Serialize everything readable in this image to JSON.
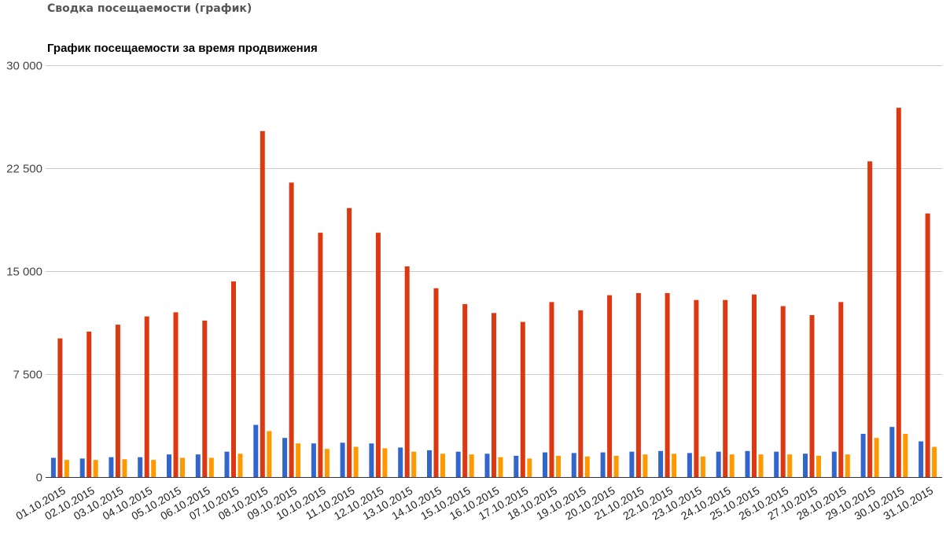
{
  "header": {
    "title": "Сводка посещаемости (график)"
  },
  "chart_data": {
    "type": "bar",
    "title": "График посещаемости за время продвижения",
    "xlabel": "",
    "ylabel": "",
    "ylim": [
      0,
      30000
    ],
    "y_ticks": [
      0,
      7500,
      15000,
      22500,
      30000
    ],
    "y_tick_labels": [
      "0",
      "7 500",
      "15 000",
      "22 500",
      "30 000"
    ],
    "grid": true,
    "legend": "none",
    "categories": [
      "01.10.2015",
      "02.10.2015",
      "03.10.2015",
      "04.10.2015",
      "05.10.2015",
      "06.10.2015",
      "07.10.2015",
      "08.10.2015",
      "09.10.2015",
      "10.10.2015",
      "11.10.2015",
      "12.10.2015",
      "13.10.2015",
      "14.10.2015",
      "15.10.2015",
      "16.10.2015",
      "17.10.2015",
      "18.10.2015",
      "19.10.2015",
      "20.10.2015",
      "21.10.2015",
      "22.10.2015",
      "23.10.2015",
      "24.10.2015",
      "25.10.2015",
      "26.10.2015",
      "27.10.2015",
      "28.10.2015",
      "29.10.2015",
      "30.10.2015",
      "31.10.2015"
    ],
    "series": [
      {
        "color": "#3366cc",
        "values": [
          1400,
          1350,
          1450,
          1450,
          1650,
          1650,
          1850,
          3800,
          2850,
          2450,
          2500,
          2450,
          2150,
          1950,
          1850,
          1700,
          1550,
          1800,
          1750,
          1800,
          1850,
          1900,
          1750,
          1850,
          1900,
          1850,
          1700,
          1850,
          3150,
          3650,
          2600
        ]
      },
      {
        "color": "#dc3912",
        "values": [
          10100,
          10600,
          11100,
          11700,
          12000,
          11400,
          14250,
          25200,
          21450,
          17800,
          19600,
          17800,
          15350,
          13750,
          12600,
          11950,
          11300,
          12750,
          12150,
          13250,
          13400,
          13400,
          12900,
          12900,
          13300,
          12450,
          11800,
          12750,
          23000,
          26900,
          19200
        ]
      },
      {
        "color": "#ff9900",
        "values": [
          1250,
          1250,
          1300,
          1250,
          1400,
          1400,
          1700,
          3350,
          2450,
          2050,
          2200,
          2100,
          1850,
          1700,
          1650,
          1450,
          1350,
          1550,
          1500,
          1550,
          1650,
          1700,
          1500,
          1650,
          1650,
          1650,
          1550,
          1650,
          2850,
          3150,
          2200
        ]
      }
    ]
  }
}
